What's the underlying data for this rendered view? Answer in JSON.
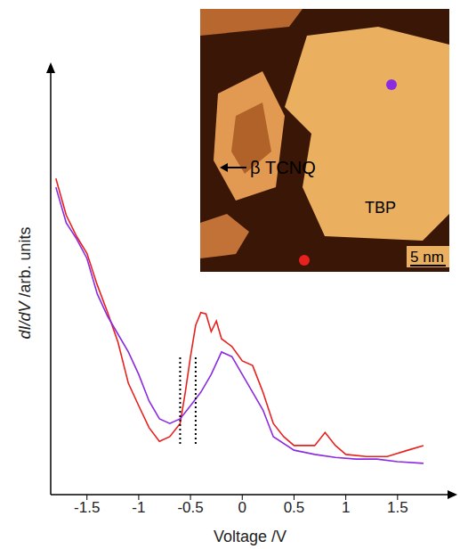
{
  "chart_data": {
    "type": "line",
    "xlabel": "Voltage /V",
    "ylabel": "dI/dV /arb. units",
    "xlim": [
      -1.85,
      2.0
    ],
    "xticks": [
      -1.5,
      -1,
      -0.5,
      0,
      0.5,
      1,
      1.5
    ],
    "ylim": [
      0,
      10
    ],
    "yticks": [],
    "tick_labels": "x",
    "series": [
      {
        "color": "#e8201e",
        "x": [
          -1.8,
          -1.7,
          -1.6,
          -1.5,
          -1.4,
          -1.3,
          -1.2,
          -1.1,
          -1.0,
          -0.9,
          -0.8,
          -0.7,
          -0.6,
          -0.55,
          -0.5,
          -0.45,
          -0.4,
          -0.35,
          -0.3,
          -0.25,
          -0.2,
          -0.1,
          0,
          0.1,
          0.2,
          0.3,
          0.4,
          0.5,
          0.7,
          0.8,
          0.9,
          1.0,
          1.2,
          1.4,
          1.6,
          1.75
        ],
        "values": [
          7.47,
          6.6,
          6.1,
          5.7,
          4.95,
          4.3,
          3.6,
          2.63,
          2.1,
          1.58,
          1.26,
          1.37,
          1.68,
          2.42,
          3.26,
          4.0,
          4.3,
          4.27,
          3.85,
          4.1,
          3.68,
          3.5,
          3.16,
          3.05,
          2.42,
          1.68,
          1.37,
          1.16,
          1.16,
          1.47,
          1.16,
          0.95,
          0.9,
          0.9,
          1.05,
          1.16
        ]
      },
      {
        "color": "#8a2be2",
        "x": [
          -1.8,
          -1.7,
          -1.6,
          -1.5,
          -1.4,
          -1.3,
          -1.2,
          -1.1,
          -1.0,
          -0.9,
          -0.8,
          -0.7,
          -0.6,
          -0.5,
          -0.4,
          -0.3,
          -0.2,
          -0.1,
          0,
          0.1,
          0.2,
          0.3,
          0.5,
          0.7,
          0.9,
          1.1,
          1.3,
          1.5,
          1.75
        ],
        "values": [
          7.26,
          6.42,
          6.04,
          5.58,
          4.74,
          4.21,
          3.79,
          3.37,
          2.84,
          2.21,
          1.79,
          1.68,
          1.79,
          2.1,
          2.42,
          2.84,
          3.37,
          3.26,
          2.84,
          2.42,
          2.0,
          1.37,
          1.05,
          0.95,
          0.88,
          0.84,
          0.84,
          0.78,
          0.74
        ]
      }
    ],
    "vlines": {
      "x": [
        -0.6,
        -0.45
      ],
      "y": [
        1.2,
        3.3
      ],
      "line_style": "dotted"
    },
    "inset": {
      "arrow_label": "β TCNQ",
      "region_label": "TBP",
      "scale_bar": "5 nm"
    }
  }
}
